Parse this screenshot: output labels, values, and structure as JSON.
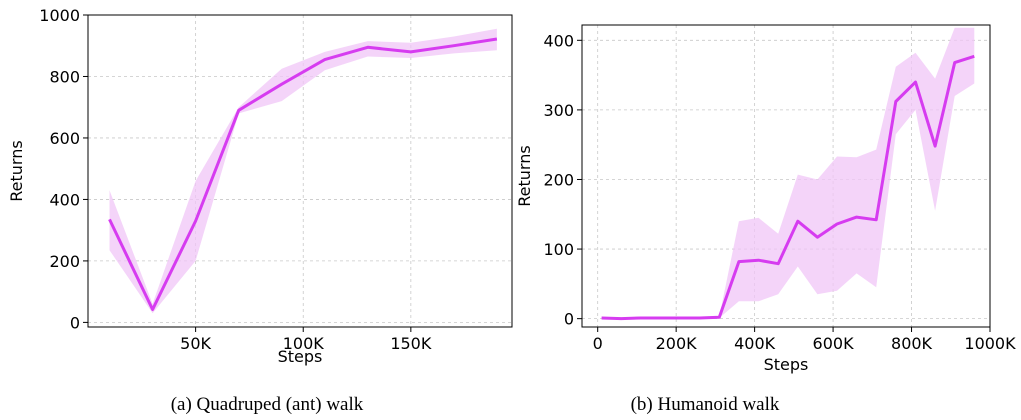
{
  "chart_data": [
    {
      "type": "line",
      "caption": "(a) Quadruped (ant) walk",
      "xlabel": "Steps",
      "ylabel": "Returns",
      "xlim": [
        0,
        197000
      ],
      "ylim": [
        -15,
        1000
      ],
      "xticks": [
        50000,
        100000,
        150000
      ],
      "xtick_labels": [
        "50K",
        "100K",
        "150K"
      ],
      "yticks": [
        0,
        200,
        400,
        600,
        800,
        1000
      ],
      "ytick_labels": [
        "0",
        "200",
        "400",
        "600",
        "800",
        "1000"
      ],
      "grid": true,
      "line_color": "#d63cf0",
      "band_color": "#f0c6f7",
      "series": [
        {
          "x": [
            10000,
            30000,
            50000,
            70000,
            90000,
            110000,
            130000,
            150000,
            170000,
            190000
          ],
          "y": [
            335,
            42,
            330,
            690,
            775,
            855,
            895,
            880,
            900,
            922
          ],
          "lower": [
            235,
            30,
            200,
            680,
            720,
            820,
            865,
            860,
            875,
            885
          ],
          "upper": [
            430,
            60,
            460,
            700,
            825,
            880,
            915,
            910,
            930,
            955
          ]
        }
      ]
    },
    {
      "type": "line",
      "caption": "(b) Humanoid walk",
      "xlabel": "Steps",
      "ylabel": "Returns",
      "xlim": [
        -40000,
        1000000
      ],
      "ylim": [
        -12,
        422
      ],
      "xticks": [
        0,
        200000,
        400000,
        600000,
        800000,
        1000000
      ],
      "xtick_labels": [
        "0",
        "200K",
        "400K",
        "600K",
        "800K",
        "1000K"
      ],
      "yticks": [
        0,
        100,
        200,
        300,
        400
      ],
      "ytick_labels": [
        "0",
        "100",
        "200",
        "300",
        "400"
      ],
      "grid": true,
      "line_color": "#d63cf0",
      "band_color": "#f0c6f7",
      "series": [
        {
          "x": [
            10000,
            60000,
            110000,
            160000,
            210000,
            260000,
            310000,
            360000,
            410000,
            460000,
            510000,
            560000,
            610000,
            660000,
            710000,
            760000,
            810000,
            860000,
            910000,
            960000
          ],
          "y": [
            1,
            0,
            1,
            1,
            1,
            1,
            2,
            82,
            84,
            79,
            140,
            117,
            136,
            146,
            142,
            312,
            340,
            248,
            368,
            377
          ],
          "lower": [
            0,
            0,
            0,
            0,
            0,
            0,
            1,
            25,
            25,
            35,
            75,
            35,
            40,
            65,
            45,
            265,
            300,
            155,
            320,
            338
          ],
          "upper": [
            2,
            1,
            2,
            2,
            2,
            2,
            3,
            140,
            145,
            122,
            207,
            200,
            233,
            232,
            243,
            362,
            382,
            345,
            418,
            418
          ]
        }
      ]
    }
  ]
}
